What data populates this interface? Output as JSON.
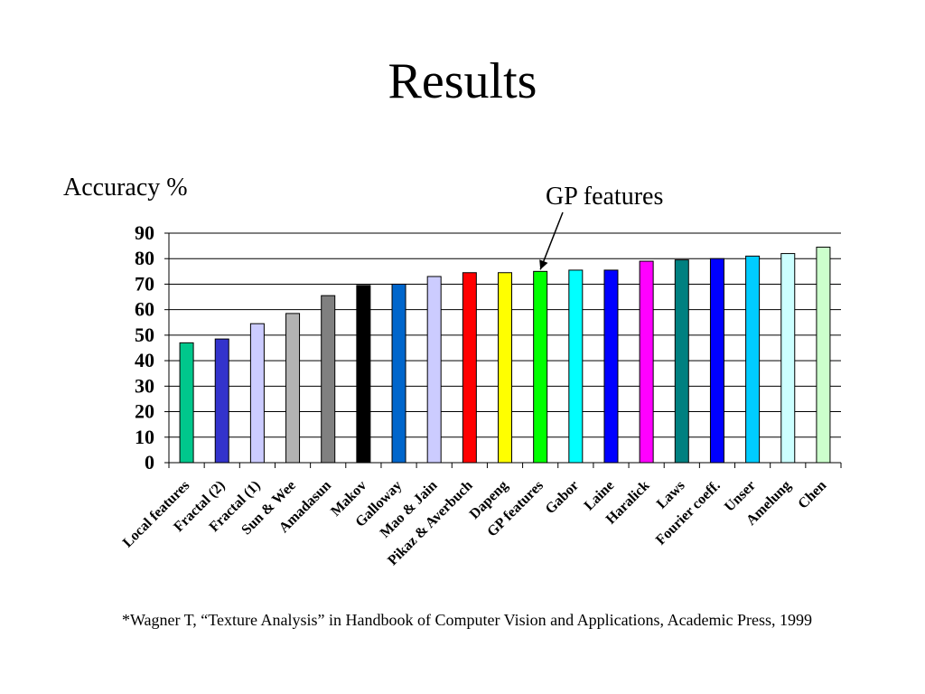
{
  "slide": {
    "title": "Results",
    "footnote": "*Wagner T, “Texture Analysis” in Handbook of Computer Vision and Applications, Academic Press, 1999"
  },
  "chart_data": {
    "type": "bar",
    "title": "",
    "xlabel": "",
    "ylabel": "Accuracy %",
    "ylim": [
      0,
      90
    ],
    "yticks": [
      0,
      10,
      20,
      30,
      40,
      50,
      60,
      70,
      80,
      90
    ],
    "grid": true,
    "legend": "none",
    "annotation": {
      "text": "GP features",
      "target": "GP features"
    },
    "categories": [
      "Local features",
      "Fractal (2)",
      "Fractal (1)",
      "Sun & Wee",
      "Amadasun",
      "Makov",
      "Galloway",
      "Mao & Jain",
      "Pikaz & Averbuch",
      "Dapeng",
      "GP features",
      "Gabor",
      "Laine",
      "Haralick",
      "Laws",
      "Fourier coeff.",
      "Unser",
      "Amelung",
      "Chen"
    ],
    "values": [
      47,
      48.5,
      54.5,
      58.5,
      65.5,
      69.5,
      70,
      73,
      74.5,
      74.5,
      75,
      75.5,
      75.5,
      79,
      79.5,
      80,
      81,
      82,
      84.5
    ],
    "colors": [
      "#00c78c",
      "#3333cc",
      "#ccccff",
      "#b3b3b3",
      "#808080",
      "#000000",
      "#0066cc",
      "#ccccff",
      "#ff0000",
      "#ffff00",
      "#00ff00",
      "#00ffff",
      "#0000ff",
      "#ff00ff",
      "#008080",
      "#0000ff",
      "#00ccff",
      "#ccffff",
      "#ccffcc"
    ]
  }
}
